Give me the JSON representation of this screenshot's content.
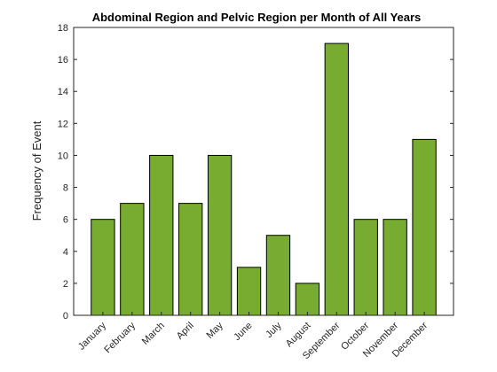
{
  "chart_data": {
    "type": "bar",
    "title": "Abdominal Region and Pelvic Region per Month of All Years",
    "xlabel": "",
    "ylabel": "Frequency of Event",
    "categories": [
      "January",
      "February",
      "March",
      "April",
      "May",
      "June",
      "July",
      "August",
      "September",
      "October",
      "November",
      "December"
    ],
    "values": [
      6,
      7,
      10,
      7,
      10,
      3,
      5,
      2,
      17,
      6,
      6,
      11
    ],
    "ylim": [
      0,
      18
    ],
    "yticks": [
      0,
      2,
      4,
      6,
      8,
      10,
      12,
      14,
      16,
      18
    ],
    "grid": false,
    "legend": "none",
    "bar_color": "#77ac30",
    "edge_color": "#000000"
  }
}
